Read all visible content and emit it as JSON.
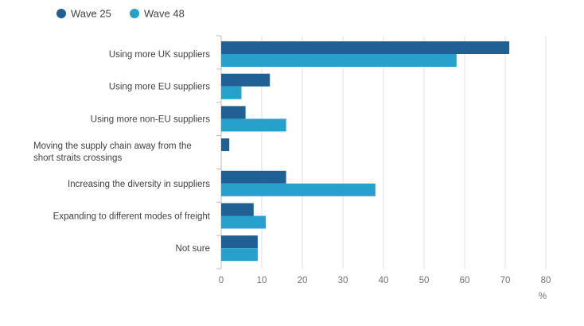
{
  "chart_data": {
    "type": "bar",
    "orientation": "horizontal",
    "categories": [
      [
        "Using more UK suppliers"
      ],
      [
        "Using more EU suppliers"
      ],
      [
        "Using more non-EU suppliers"
      ],
      [
        "Moving the supply chain away from the",
        "short straits crossings"
      ],
      [
        "Increasing the diversity in suppliers"
      ],
      [
        "Expanding to different modes of freight"
      ],
      [
        "Not sure"
      ]
    ],
    "series": [
      {
        "name": "Wave 25",
        "color": "#206095",
        "values": [
          71,
          12,
          6,
          2,
          16,
          8,
          9
        ]
      },
      {
        "name": "Wave 48",
        "color": "#27a0cc",
        "values": [
          58,
          5,
          16,
          0,
          38,
          11,
          9
        ]
      }
    ],
    "xlim": [
      0,
      80
    ],
    "xticks": [
      0,
      10,
      20,
      30,
      40,
      50,
      60,
      70,
      80
    ],
    "xunit": "%",
    "grid": true,
    "legend_position": "top-left",
    "colors": {
      "gridline": "#e0e0e0",
      "axis": "#bebebe"
    }
  }
}
